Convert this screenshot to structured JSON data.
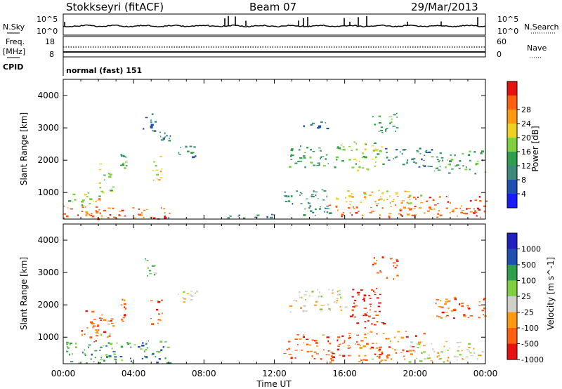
{
  "header": {
    "station": "Stokkseyri (fitACF)",
    "beam": "Beam 07",
    "date": "29/Mar/2013"
  },
  "top_panels": {
    "nsky_label": "N.Sky",
    "nsky_tick_top": "10^5",
    "nsky_tick_bottom": "10^0",
    "nsearch_label": "N.Search",
    "freq_label_1": "Freq.",
    "freq_label_2": "[MHz]",
    "freq_ticks": [
      "18",
      "8"
    ],
    "nave_ticks": [
      "60",
      "0"
    ],
    "nave_label": "Nave",
    "cpid_label": "CPID",
    "cpid_value": "normal (fast) 151"
  },
  "colors": {
    "power": [
      "#1a1aff",
      "#1f4fb0",
      "#3d8a7a",
      "#2f9f4f",
      "#7fcf3f",
      "#f0d020",
      "#ff9a10",
      "#ff6010",
      "#e81010"
    ],
    "velocity": [
      "#e81010",
      "#ff6010",
      "#ff9a10",
      "#d0d0c8",
      "#7fcf3f",
      "#2f9f4f",
      "#1f4fb0",
      "#2020c0"
    ]
  },
  "chart_data": [
    {
      "type": "heatmap",
      "quantity": "power",
      "ylabel": "Slant Range [km]",
      "ylim": [
        180,
        4500
      ],
      "yticks": [
        "1000",
        "2000",
        "3000",
        "4000"
      ],
      "xticks": [
        "00:00",
        "04:00",
        "08:00",
        "12:00",
        "16:00",
        "20:00",
        "00:00"
      ],
      "xlim_hours": [
        0,
        24
      ],
      "colorbar_label": "Power [dB]",
      "colorbar_ticks": [
        "4",
        "8",
        "12",
        "16",
        "20",
        "24",
        "28"
      ],
      "blobs": [
        {
          "t": [
            0.0,
            6.2
          ],
          "r": [
            200,
            600
          ],
          "v": 26
        },
        {
          "t": [
            0.0,
            1.5
          ],
          "r": [
            600,
            1000
          ],
          "v": 14
        },
        {
          "t": [
            1.2,
            2.2
          ],
          "r": [
            200,
            900
          ],
          "v": 22
        },
        {
          "t": [
            2.0,
            2.8
          ],
          "r": [
            900,
            1900
          ],
          "v": 14
        },
        {
          "t": [
            3.2,
            3.6
          ],
          "r": [
            1600,
            2300
          ],
          "v": 12
        },
        {
          "t": [
            4.9,
            5.6
          ],
          "r": [
            1400,
            2200
          ],
          "v": 18
        },
        {
          "t": [
            4.5,
            5.2
          ],
          "r": [
            2900,
            3500
          ],
          "v": 10
        },
        {
          "t": [
            5.4,
            6.2
          ],
          "r": [
            2600,
            2900
          ],
          "v": 9
        },
        {
          "t": [
            6.5,
            7.6
          ],
          "r": [
            2100,
            2450
          ],
          "v": 10
        },
        {
          "t": [
            9.0,
            12.0
          ],
          "r": [
            200,
            350
          ],
          "v": 7
        },
        {
          "t": [
            12.5,
            15.2
          ],
          "r": [
            300,
            1100
          ],
          "v": 10
        },
        {
          "t": [
            12.8,
            16.0
          ],
          "r": [
            1800,
            2500
          ],
          "v": 12
        },
        {
          "t": [
            13.6,
            15.0
          ],
          "r": [
            3000,
            3200
          ],
          "v": 8
        },
        {
          "t": [
            15.0,
            20.0
          ],
          "r": [
            250,
            650
          ],
          "v": 27
        },
        {
          "t": [
            15.5,
            20.5
          ],
          "r": [
            650,
            1100
          ],
          "v": 18
        },
        {
          "t": [
            16.2,
            18.2
          ],
          "r": [
            1700,
            2600
          ],
          "v": 14
        },
        {
          "t": [
            18.0,
            21.0
          ],
          "r": [
            1800,
            2400
          ],
          "v": 10
        },
        {
          "t": [
            19.5,
            24.0
          ],
          "r": [
            250,
            900
          ],
          "v": 25
        },
        {
          "t": [
            21.0,
            24.0
          ],
          "r": [
            1600,
            2300
          ],
          "v": 12
        },
        {
          "t": [
            17.5,
            19.0
          ],
          "r": [
            2800,
            3500
          ],
          "v": 12
        }
      ]
    },
    {
      "type": "heatmap",
      "quantity": "velocity",
      "ylabel": "Slant Range [km]",
      "ylim": [
        180,
        4500
      ],
      "yticks": [
        "1000",
        "2000",
        "3000",
        "4000"
      ],
      "xticks": [
        "00:00",
        "04:00",
        "08:00",
        "12:00",
        "16:00",
        "20:00",
        "00:00"
      ],
      "xlim_hours": [
        0,
        24
      ],
      "xlabel": "Time UT",
      "colorbar_label": "Velocity [m s^-1]",
      "colorbar_ticks": [
        "1000",
        "500",
        "100",
        "25",
        "-25",
        "-100",
        "-500",
        "-1000"
      ],
      "blobs": [
        {
          "t": [
            0.0,
            6.2
          ],
          "r": [
            200,
            900
          ],
          "v": 150
        },
        {
          "t": [
            1.0,
            2.8
          ],
          "r": [
            900,
            1900
          ],
          "v": -200
        },
        {
          "t": [
            3.2,
            3.6
          ],
          "r": [
            1500,
            2300
          ],
          "v": -300
        },
        {
          "t": [
            4.9,
            5.6
          ],
          "r": [
            1400,
            2200
          ],
          "v": -400
        },
        {
          "t": [
            4.5,
            5.2
          ],
          "r": [
            2900,
            3500
          ],
          "v": 50
        },
        {
          "t": [
            6.5,
            7.6
          ],
          "r": [
            2100,
            2450
          ],
          "v": 0
        },
        {
          "t": [
            12.5,
            15.2
          ],
          "r": [
            300,
            1100
          ],
          "v": -300
        },
        {
          "t": [
            12.8,
            16.0
          ],
          "r": [
            1800,
            2500
          ],
          "v": 0
        },
        {
          "t": [
            15.0,
            20.0
          ],
          "r": [
            250,
            700
          ],
          "v": -300
        },
        {
          "t": [
            15.5,
            20.5
          ],
          "r": [
            700,
            1200
          ],
          "v": -150
        },
        {
          "t": [
            16.2,
            18.2
          ],
          "r": [
            1300,
            2600
          ],
          "v": -500
        },
        {
          "t": [
            19.5,
            24.0
          ],
          "r": [
            250,
            900
          ],
          "v": 0
        },
        {
          "t": [
            21.0,
            24.0
          ],
          "r": [
            1600,
            2300
          ],
          "v": -100
        },
        {
          "t": [
            17.5,
            19.0
          ],
          "r": [
            2800,
            3500
          ],
          "v": -200
        }
      ]
    }
  ]
}
